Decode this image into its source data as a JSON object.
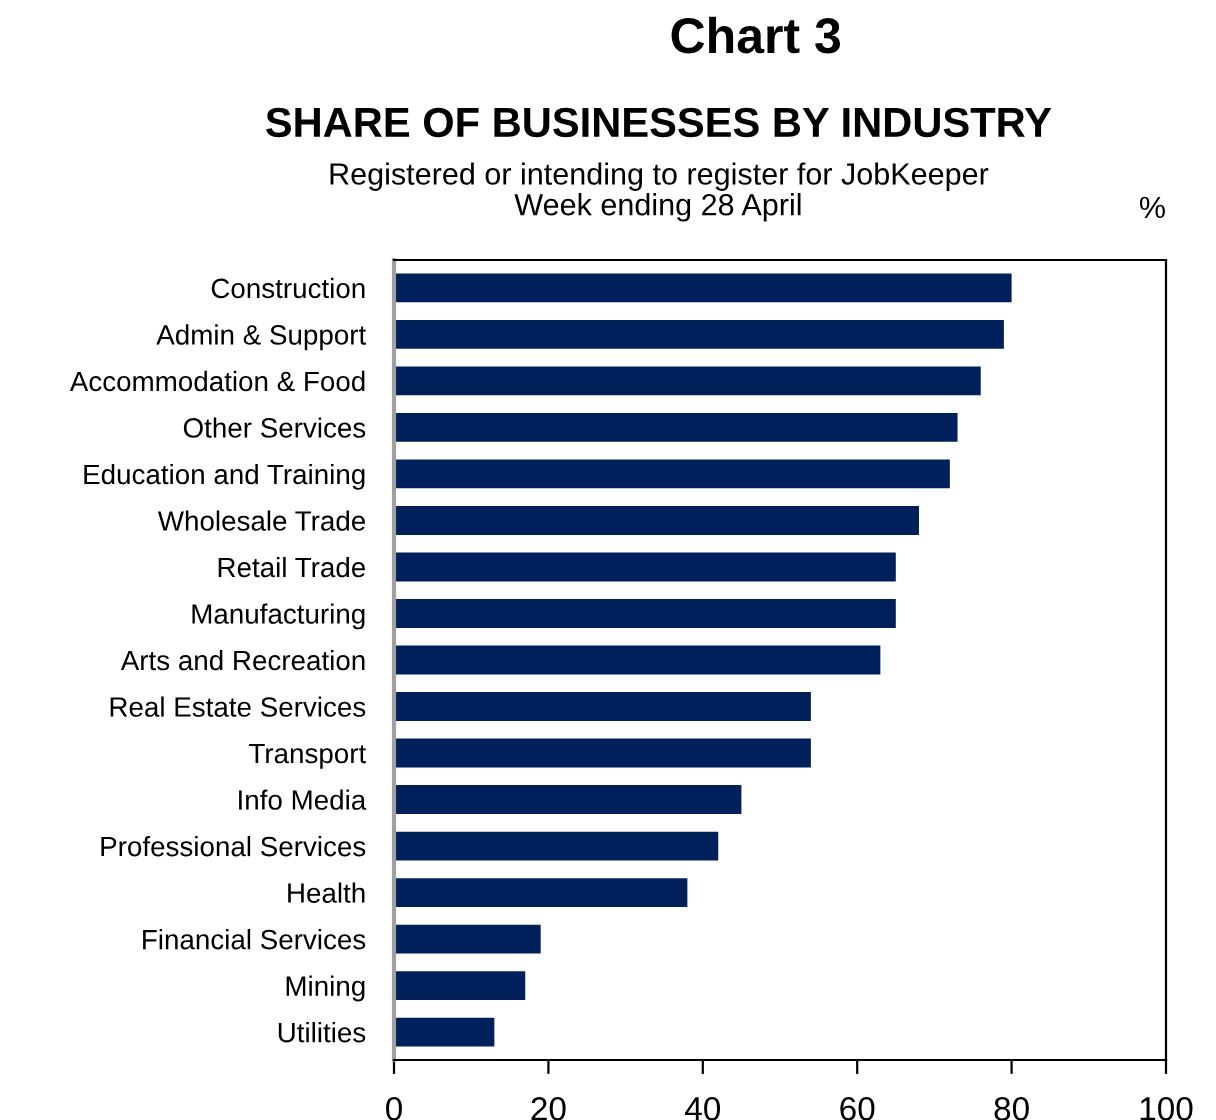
{
  "chart_data": {
    "type": "bar",
    "orientation": "horizontal",
    "title": "Chart 3",
    "subtitle": "SHARE OF BUSINESSES BY INDUSTRY",
    "annotations": [
      "Registered or intending to register for JobKeeper\nWeek ending 28 April"
    ],
    "ylabel": "%",
    "categories": [
      "Construction",
      "Admin & Support",
      "Accommodation & Food",
      "Other Services",
      "Education and Training",
      "Wholesale Trade",
      "Retail Trade",
      "Manufacturing",
      "Arts and Recreation",
      "Real Estate Services",
      "Transport",
      "Info Media",
      "Professional Services",
      "Health",
      "Financial Services",
      "Mining",
      "Utilities"
    ],
    "values": [
      80,
      79,
      76,
      73,
      72,
      68,
      65,
      65,
      63,
      54,
      54,
      45,
      42,
      38,
      19,
      17,
      13
    ],
    "color": "#00205b",
    "xlim": [
      0,
      100
    ],
    "xticks": [
      0,
      20,
      40,
      60,
      80,
      100
    ],
    "grid": false,
    "legend": false
  }
}
